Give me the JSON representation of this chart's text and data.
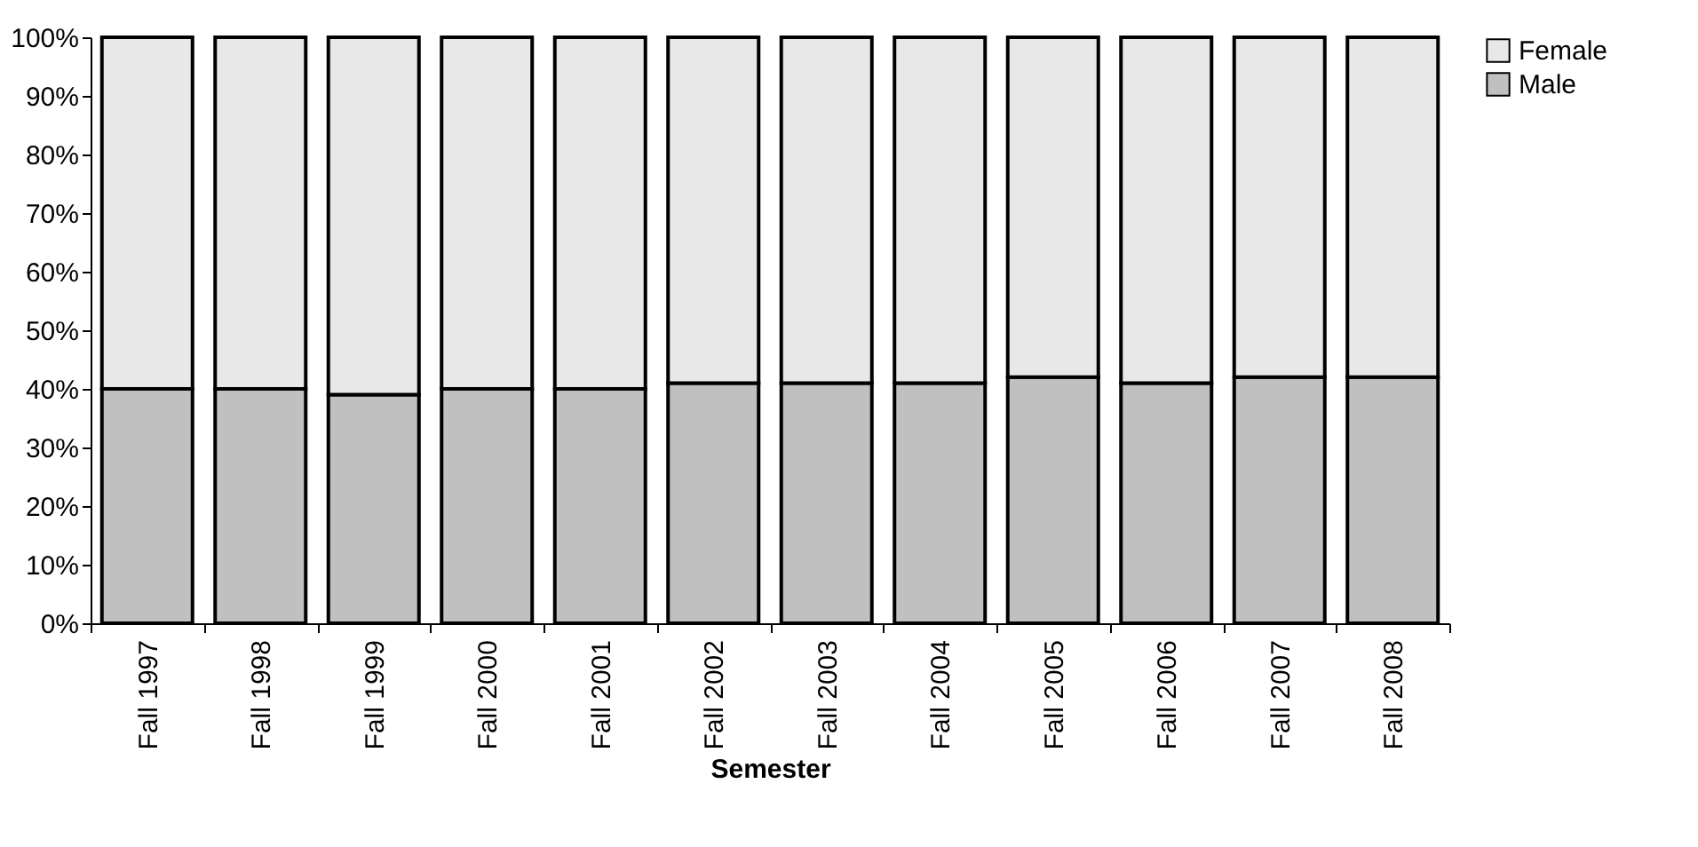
{
  "chart_data": {
    "type": "bar",
    "stacked": true,
    "xlabel": "Semester",
    "categories": [
      "Fall 1997",
      "Fall 1998",
      "Fall 1999",
      "Fall 2000",
      "Fall 2001",
      "Fall 2002",
      "Fall 2003",
      "Fall 2004",
      "Fall 2005",
      "Fall 2006",
      "Fall 2007",
      "Fall 2008"
    ],
    "series": [
      {
        "name": "Male",
        "color": "#c0c0c0",
        "values": [
          40,
          40,
          39,
          40,
          40,
          41,
          41,
          41,
          42,
          41,
          42,
          42
        ]
      },
      {
        "name": "Female",
        "color": "#e8e8e8",
        "values": [
          60,
          60,
          61,
          60,
          60,
          59,
          59,
          59,
          58,
          59,
          58,
          58
        ]
      }
    ],
    "ylim": [
      0,
      100
    ],
    "yticks": [
      {
        "value": 0,
        "label": "0%"
      },
      {
        "value": 10,
        "label": "10%"
      },
      {
        "value": 20,
        "label": "20%"
      },
      {
        "value": 30,
        "label": "30%"
      },
      {
        "value": 40,
        "label": "40%"
      },
      {
        "value": 50,
        "label": "50%"
      },
      {
        "value": 60,
        "label": "60%"
      },
      {
        "value": 70,
        "label": "70%"
      },
      {
        "value": 80,
        "label": "80%"
      },
      {
        "value": 90,
        "label": "90%"
      },
      {
        "value": 100,
        "label": "100%"
      }
    ],
    "grid": false,
    "legend": "right"
  }
}
